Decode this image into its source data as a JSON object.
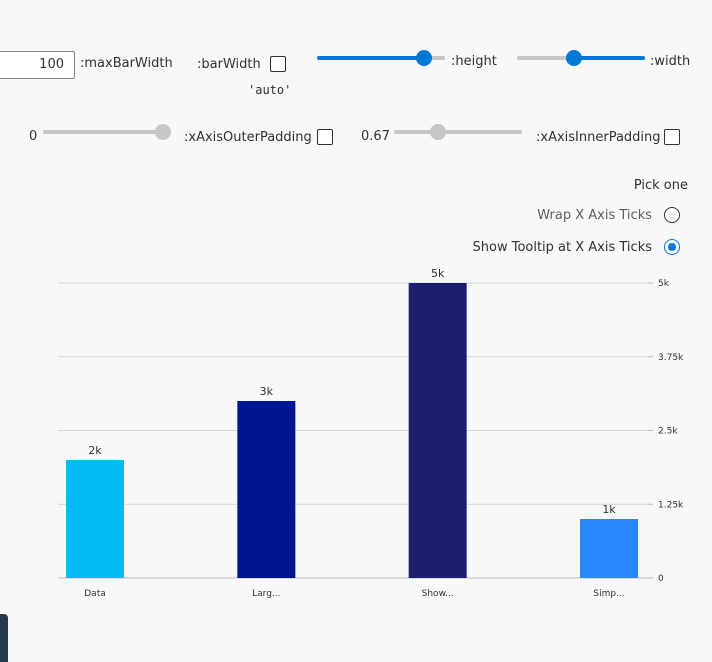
{
  "controls": {
    "max_bar_width_value": "100",
    "max_bar_width_label": ":maxBarWidth",
    "bar_width_label": ":barWidth",
    "bar_width_value": "'auto'",
    "height_label": ":height",
    "height_fraction": 0.88,
    "width_label": ":width",
    "width_fraction": 0.44,
    "x_axis_outer_padding_value": "0",
    "x_axis_outer_padding_label": ":xAxisOuterPadding",
    "x_axis_inner_padding_value": "0.67",
    "x_axis_inner_padding_label": ":xAxisInnerPadding",
    "pick_one_label": "Pick one",
    "radio_options": [
      {
        "label": "Wrap X Axis Ticks",
        "checked": false
      },
      {
        "label": "Show Tooltip at X Axis Ticks",
        "checked": true
      }
    ]
  },
  "chart_data": {
    "type": "bar",
    "categories": [
      "Data",
      "Larg...",
      "Show...",
      "Simp..."
    ],
    "values": [
      2000,
      3000,
      5000,
      1000
    ],
    "data_labels": [
      "2k",
      "3k",
      "5k",
      "1k"
    ],
    "colors": [
      "#00bcf2",
      "#00188f",
      "#1e1e6e",
      "#2b88ff"
    ],
    "y_ticks": [
      "0",
      "1.25k",
      "2.5k",
      "3.75k",
      "5k"
    ],
    "y_tick_values": [
      0,
      1250,
      2500,
      3750,
      5000
    ],
    "ylim": [
      0,
      5000
    ],
    "grid": true,
    "y_axis_position": "right"
  }
}
